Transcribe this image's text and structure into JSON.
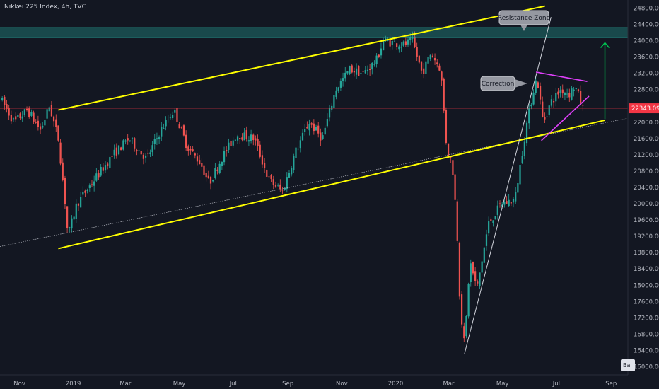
{
  "header": {
    "title": "Nikkei 225 Index, 4h, TVC"
  },
  "corner_button": {
    "label": "Ba"
  },
  "colors": {
    "background": "#131722",
    "up": "#26a69a",
    "down": "#ef5350",
    "channel": "#ffff00",
    "resistance": "#26a69a",
    "triangle": "#e040fb",
    "target_arrow": "#00c853",
    "last_price": "#f23645"
  },
  "chart_data": {
    "type": "candlestick",
    "title": "Nikkei 225 Index, 4h, TVC",
    "xlabel": "",
    "ylabel": "",
    "ylim": [
      15800,
      25000
    ],
    "y_ticks": [
      16000,
      16400,
      16800,
      17200,
      17600,
      18000,
      18400,
      18800,
      19200,
      19600,
      20000,
      20400,
      20800,
      21200,
      21600,
      22000,
      22400,
      22800,
      23200,
      23600,
      24000,
      24400,
      24800
    ],
    "x_range": [
      "2018-10-10",
      "2020-09-20"
    ],
    "x_ticks": [
      {
        "label": "Nov",
        "date": "2018-11-01"
      },
      {
        "label": "2019",
        "date": "2019-01-01"
      },
      {
        "label": "Mar",
        "date": "2019-03-01"
      },
      {
        "label": "May",
        "date": "2019-05-01"
      },
      {
        "label": "Jul",
        "date": "2019-07-01"
      },
      {
        "label": "Sep",
        "date": "2019-09-01"
      },
      {
        "label": "Nov",
        "date": "2019-11-01"
      },
      {
        "label": "2020",
        "date": "2020-01-01"
      },
      {
        "label": "Mar",
        "date": "2020-03-01"
      },
      {
        "label": "May",
        "date": "2020-05-01"
      },
      {
        "label": "Jul",
        "date": "2020-07-01"
      },
      {
        "label": "Sep",
        "date": "2020-09-01"
      }
    ],
    "last_price": 22343.09,
    "last_price_label": "22343.09",
    "series": [
      {
        "date": "2018-10-10",
        "close": 22600
      },
      {
        "date": "2018-10-26",
        "close": 22000
      },
      {
        "date": "2018-11-10",
        "close": 22300
      },
      {
        "date": "2018-11-25",
        "close": 21800
      },
      {
        "date": "2018-12-05",
        "close": 22400
      },
      {
        "date": "2018-12-15",
        "close": 21600
      },
      {
        "date": "2018-12-22",
        "close": 20200
      },
      {
        "date": "2018-12-26",
        "close": 19200
      },
      {
        "date": "2019-01-05",
        "close": 20000
      },
      {
        "date": "2019-01-25",
        "close": 20600
      },
      {
        "date": "2019-02-15",
        "close": 21200
      },
      {
        "date": "2019-03-05",
        "close": 21600
      },
      {
        "date": "2019-03-25",
        "close": 21100
      },
      {
        "date": "2019-04-10",
        "close": 21800
      },
      {
        "date": "2019-04-25",
        "close": 22300
      },
      {
        "date": "2019-05-10",
        "close": 21400
      },
      {
        "date": "2019-05-25",
        "close": 21000
      },
      {
        "date": "2019-06-04",
        "close": 20500
      },
      {
        "date": "2019-06-20",
        "close": 21200
      },
      {
        "date": "2019-07-05",
        "close": 21700
      },
      {
        "date": "2019-07-25",
        "close": 21600
      },
      {
        "date": "2019-08-10",
        "close": 20600
      },
      {
        "date": "2019-08-26",
        "close": 20300
      },
      {
        "date": "2019-09-10",
        "close": 21300
      },
      {
        "date": "2019-09-25",
        "close": 22000
      },
      {
        "date": "2019-10-10",
        "close": 21600
      },
      {
        "date": "2019-10-25",
        "close": 22800
      },
      {
        "date": "2019-11-10",
        "close": 23300
      },
      {
        "date": "2019-11-25",
        "close": 23200
      },
      {
        "date": "2019-12-10",
        "close": 23500
      },
      {
        "date": "2019-12-18",
        "close": 24000
      },
      {
        "date": "2020-01-10",
        "close": 23900
      },
      {
        "date": "2020-01-20",
        "close": 24000
      },
      {
        "date": "2020-01-31",
        "close": 23200
      },
      {
        "date": "2020-02-10",
        "close": 23700
      },
      {
        "date": "2020-02-21",
        "close": 23300
      },
      {
        "date": "2020-02-28",
        "close": 21300
      },
      {
        "date": "2020-03-05",
        "close": 21000
      },
      {
        "date": "2020-03-10",
        "close": 19600
      },
      {
        "date": "2020-03-14",
        "close": 17500
      },
      {
        "date": "2020-03-19",
        "close": 16500
      },
      {
        "date": "2020-03-25",
        "close": 18600
      },
      {
        "date": "2020-04-02",
        "close": 17900
      },
      {
        "date": "2020-04-15",
        "close": 19500
      },
      {
        "date": "2020-04-30",
        "close": 20000
      },
      {
        "date": "2020-05-15",
        "close": 20100
      },
      {
        "date": "2020-05-28",
        "close": 21900
      },
      {
        "date": "2020-06-05",
        "close": 22800
      },
      {
        "date": "2020-06-09",
        "close": 23100
      },
      {
        "date": "2020-06-16",
        "close": 22000
      },
      {
        "date": "2020-06-25",
        "close": 22500
      },
      {
        "date": "2020-07-06",
        "close": 22800
      },
      {
        "date": "2020-07-16",
        "close": 22700
      },
      {
        "date": "2020-07-22",
        "close": 22900
      },
      {
        "date": "2020-07-31",
        "close": 22343.09
      }
    ],
    "annotations": {
      "resistance_zone": {
        "label": "Resistance Zone",
        "upper": 24320,
        "lower": 24080
      },
      "correction": {
        "label": "Correction"
      },
      "upper_channel": [
        {
          "date": "2018-12-15",
          "price": 22300
        },
        {
          "date": "2020-06-18",
          "price": 24850
        }
      ],
      "lower_channel": [
        {
          "date": "2018-12-15",
          "price": 18900
        },
        {
          "date": "2020-08-25",
          "price": 22050
        }
      ],
      "long_trend": [
        {
          "date": "2018-10-10",
          "price": 18950
        },
        {
          "date": "2020-09-20",
          "price": 22100
        }
      ],
      "covid_trend": [
        {
          "date": "2020-03-19",
          "price": 16320
        },
        {
          "date": "2020-06-25",
          "price": 24580
        }
      ],
      "triangle_top": [
        {
          "date": "2020-06-08",
          "price": 23230
        },
        {
          "date": "2020-08-05",
          "price": 23000
        }
      ],
      "triangle_bottom": [
        {
          "date": "2020-06-14",
          "price": 21550
        },
        {
          "date": "2020-08-07",
          "price": 22640
        }
      ],
      "target_arrow": [
        {
          "date": "2020-08-25",
          "price": 22080
        },
        {
          "date": "2020-08-25",
          "price": 23950
        }
      ]
    }
  }
}
